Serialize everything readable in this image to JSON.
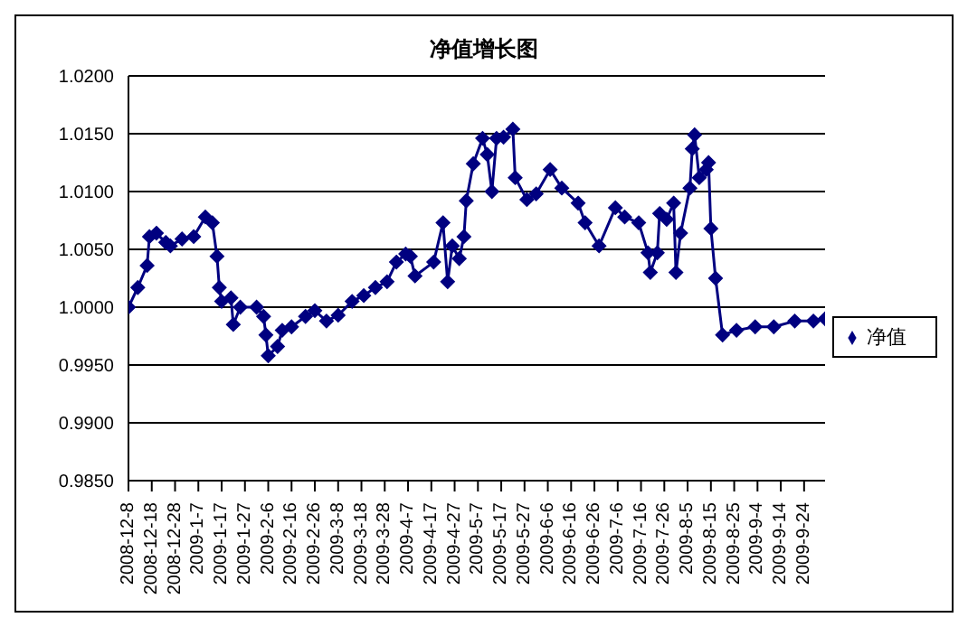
{
  "chart_data": {
    "type": "line",
    "title": "净值增长图",
    "x": [
      "2008-12-08",
      "2008-12-12",
      "2008-12-16",
      "2008-12-17",
      "2008-12-20",
      "2008-12-24",
      "2008-12-26",
      "2008-12-31",
      "2009-01-05",
      "2009-01-10",
      "2009-01-13",
      "2009-01-15",
      "2009-01-16",
      "2009-01-17",
      "2009-01-21",
      "2009-01-22",
      "2009-01-25",
      "2009-02-01",
      "2009-02-04",
      "2009-02-05",
      "2009-02-06",
      "2009-02-10",
      "2009-02-12",
      "2009-02-16",
      "2009-02-22",
      "2009-02-26",
      "2009-03-03",
      "2009-03-08",
      "2009-03-14",
      "2009-03-19",
      "2009-03-24",
      "2009-03-29",
      "2009-04-02",
      "2009-04-06",
      "2009-04-08",
      "2009-04-10",
      "2009-04-18",
      "2009-04-22",
      "2009-04-24",
      "2009-04-26",
      "2009-04-29",
      "2009-05-01",
      "2009-05-02",
      "2009-05-05",
      "2009-05-09",
      "2009-05-11",
      "2009-05-13",
      "2009-05-15",
      "2009-05-18",
      "2009-05-22",
      "2009-05-23",
      "2009-05-28",
      "2009-06-01",
      "2009-06-07",
      "2009-06-12",
      "2009-06-19",
      "2009-06-22",
      "2009-06-28",
      "2009-07-05",
      "2009-07-09",
      "2009-07-15",
      "2009-07-19",
      "2009-07-20",
      "2009-07-23",
      "2009-07-24",
      "2009-07-27",
      "2009-07-30",
      "2009-07-31",
      "2009-08-02",
      "2009-08-06",
      "2009-08-07",
      "2009-08-08",
      "2009-08-10",
      "2009-08-13",
      "2009-08-14",
      "2009-08-15",
      "2009-08-17",
      "2009-08-20",
      "2009-08-26",
      "2009-09-03",
      "2009-09-11",
      "2009-09-20",
      "2009-09-28",
      "2009-10-03"
    ],
    "series": [
      {
        "name": "净值",
        "color": "#000080",
        "values": [
          1.0,
          1.0017,
          1.0036,
          1.0061,
          1.0064,
          1.0056,
          1.0053,
          1.0059,
          1.0061,
          1.0078,
          1.0073,
          1.0044,
          1.0017,
          1.0005,
          1.0008,
          0.9985,
          1.0,
          1.0,
          0.9992,
          0.9976,
          0.9958,
          0.9966,
          0.998,
          0.9983,
          0.9992,
          0.9997,
          0.9988,
          0.9993,
          1.0005,
          1.001,
          1.0017,
          1.0022,
          1.0039,
          1.0046,
          1.0044,
          1.0027,
          1.0039,
          1.0073,
          1.0022,
          1.0053,
          1.0042,
          1.0061,
          1.0092,
          1.0124,
          1.0146,
          1.0132,
          1.01,
          1.0146,
          1.0147,
          1.0154,
          1.0112,
          1.0093,
          1.0098,
          1.0119,
          1.0103,
          1.009,
          1.0073,
          1.0053,
          1.0086,
          1.0078,
          1.0073,
          1.0047,
          1.003,
          1.0047,
          1.0081,
          1.0076,
          1.009,
          1.003,
          1.0064,
          1.0103,
          1.0137,
          1.0149,
          1.0112,
          1.0119,
          1.0125,
          1.0068,
          1.0025,
          0.9976,
          0.998,
          0.9983,
          0.9983,
          0.9988,
          0.9988,
          0.999
        ]
      }
    ],
    "xlim": [
      "2008-12-08",
      "2009-10-03"
    ],
    "xticks": [
      {
        "value": "2008-12-08",
        "label": "2008-12-8"
      },
      {
        "value": "2008-12-18",
        "label": "2008-12-18"
      },
      {
        "value": "2008-12-28",
        "label": "2008-12-28"
      },
      {
        "value": "2009-01-07",
        "label": "2009-1-7"
      },
      {
        "value": "2009-01-17",
        "label": "2009-1-17"
      },
      {
        "value": "2009-01-27",
        "label": "2009-1-27"
      },
      {
        "value": "2009-02-06",
        "label": "2009-2-6"
      },
      {
        "value": "2009-02-16",
        "label": "2009-2-16"
      },
      {
        "value": "2009-02-26",
        "label": "2009-2-26"
      },
      {
        "value": "2009-03-08",
        "label": "2009-3-8"
      },
      {
        "value": "2009-03-18",
        "label": "2009-3-18"
      },
      {
        "value": "2009-03-28",
        "label": "2009-3-28"
      },
      {
        "value": "2009-04-07",
        "label": "2009-4-7"
      },
      {
        "value": "2009-04-17",
        "label": "2009-4-17"
      },
      {
        "value": "2009-04-27",
        "label": "2009-4-27"
      },
      {
        "value": "2009-05-07",
        "label": "2009-5-7"
      },
      {
        "value": "2009-05-17",
        "label": "2009-5-17"
      },
      {
        "value": "2009-05-27",
        "label": "2009-5-27"
      },
      {
        "value": "2009-06-06",
        "label": "2009-6-6"
      },
      {
        "value": "2009-06-16",
        "label": "2009-6-16"
      },
      {
        "value": "2009-06-26",
        "label": "2009-6-26"
      },
      {
        "value": "2009-07-06",
        "label": "2009-7-6"
      },
      {
        "value": "2009-07-16",
        "label": "2009-7-16"
      },
      {
        "value": "2009-07-26",
        "label": "2009-7-26"
      },
      {
        "value": "2009-08-05",
        "label": "2009-8-5"
      },
      {
        "value": "2009-08-15",
        "label": "2009-8-15"
      },
      {
        "value": "2009-08-25",
        "label": "2009-8-25"
      },
      {
        "value": "2009-09-04",
        "label": "2009-9-4"
      },
      {
        "value": "2009-09-14",
        "label": "2009-9-14"
      },
      {
        "value": "2009-09-24",
        "label": "2009-9-24"
      }
    ],
    "ylim": [
      0.985,
      1.02
    ],
    "yticks": [
      {
        "value": 0.985,
        "label": "0.9850"
      },
      {
        "value": 0.99,
        "label": "0.9900"
      },
      {
        "value": 0.995,
        "label": "0.9950"
      },
      {
        "value": 1.0,
        "label": "1.0000"
      },
      {
        "value": 1.005,
        "label": "1.0050"
      },
      {
        "value": 1.01,
        "label": "1.0100"
      },
      {
        "value": 1.015,
        "label": "1.0150"
      },
      {
        "value": 1.02,
        "label": "1.0200"
      }
    ],
    "grid": "y",
    "legend": "right",
    "marker": "diamond",
    "line_style": "solid"
  }
}
